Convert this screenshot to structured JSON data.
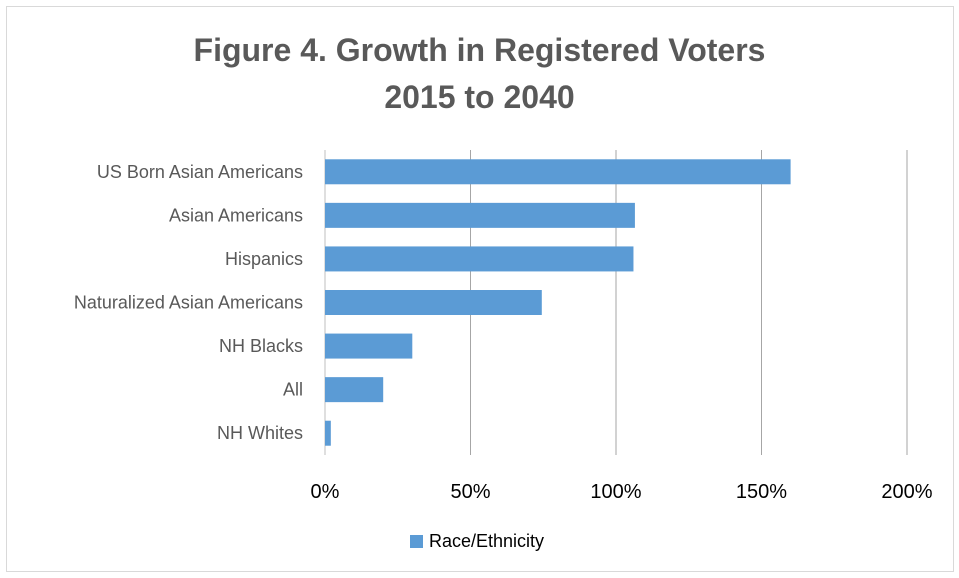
{
  "title_line1": "Figure 4. Growth in Registered Voters",
  "title_line2": "2015 to 2040",
  "chart_data": {
    "type": "bar",
    "orientation": "horizontal",
    "title": "Figure 4. Growth in Registered Voters 2015 to 2040",
    "categories": [
      "US Born Asian Americans",
      "Asian Americans",
      "Hispanics",
      "Naturalized Asian Americans",
      "NH Blacks",
      "All",
      "NH Whites"
    ],
    "series": [
      {
        "name": "Race/Ethnicity",
        "values": [
          160,
          106.5,
          106,
          74.5,
          30,
          20,
          2
        ],
        "color": "#5b9bd5"
      }
    ],
    "xlim": [
      0,
      200
    ],
    "xticks": [
      "0%",
      "50%",
      "100%",
      "150%",
      "200%"
    ],
    "grid": true,
    "legend_position": "bottom"
  }
}
